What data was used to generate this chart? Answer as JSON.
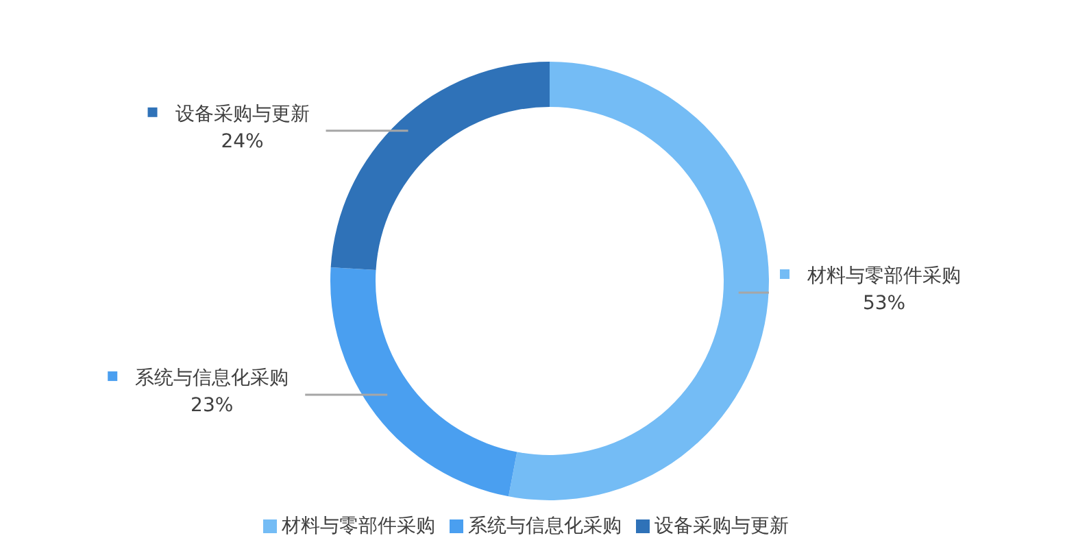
{
  "chart_data": {
    "type": "donut",
    "categories": [
      "材料与零部件采购",
      "系统与信息化采购",
      "设备采购与更新"
    ],
    "values": [
      53,
      23,
      24
    ],
    "colors": [
      "#74bcf5",
      "#4a9ff0",
      "#2f72b8"
    ],
    "value_labels": [
      "53%",
      "23%",
      "24%"
    ],
    "legend": "bottom"
  }
}
